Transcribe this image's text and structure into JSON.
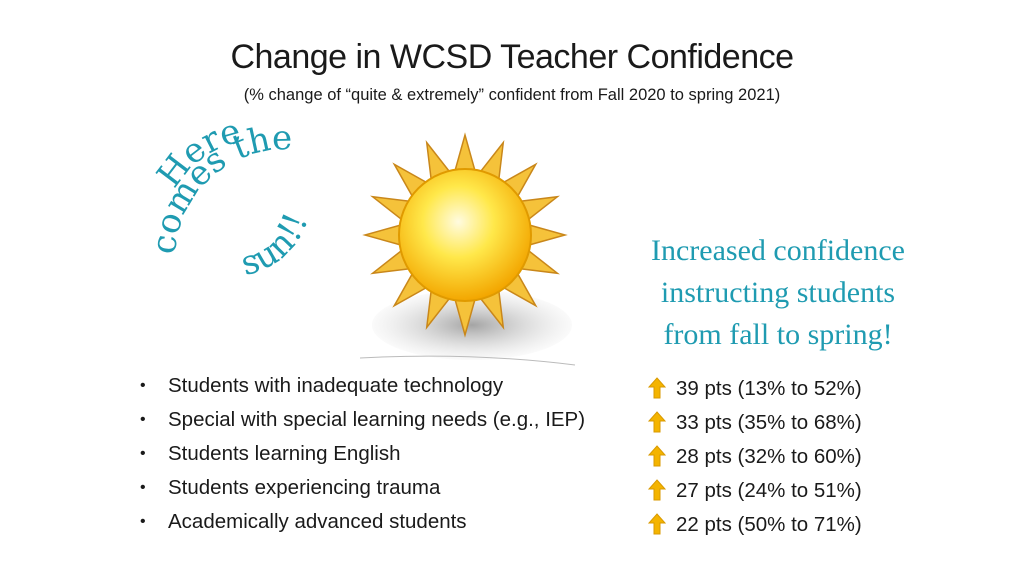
{
  "header": {
    "title": "Change in WCSD Teacher Confidence",
    "subtitle": "(% change of “quite & extremely” confident from Fall 2020 to spring 2021)"
  },
  "sun_caption": {
    "line1": "Here",
    "line2": "comes the",
    "line3": "sun!!"
  },
  "confidence_text": {
    "line1": "Increased confidence",
    "line2": "instructing students",
    "line3": "from fall to spring!"
  },
  "bullet_glyph": "•",
  "items": [
    {
      "label": "Students with inadequate technology",
      "change": "39 pts (13% to 52%)"
    },
    {
      "label": "Special with special learning needs (e.g., IEP)",
      "change": "33 pts (35% to 68%)"
    },
    {
      "label": "Students learning English",
      "change": "28 pts (32% to 60%)"
    },
    {
      "label": "Students experiencing trauma",
      "change": "27 pts (24% to 51%)"
    },
    {
      "label": "Academically advanced students",
      "change": "22 pts (50% to 71%)"
    }
  ],
  "icons": {
    "sun": "sun-icon",
    "arrow": "up-arrow-icon"
  },
  "colors": {
    "accent_teal": "#1f9bb1",
    "arrow_fill": "#f4b400",
    "sun_core": "#ffe033",
    "sun_rays": "#f5c23a"
  }
}
